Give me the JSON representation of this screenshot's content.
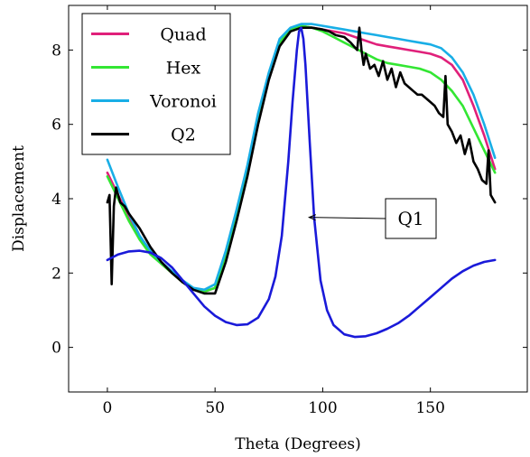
{
  "chart_data": {
    "type": "line",
    "xlabel": "Theta (Degrees)",
    "ylabel": "Displacement",
    "xlim": [
      -18,
      195
    ],
    "ylim": [
      -1.2,
      9.2
    ],
    "xticks": [
      0,
      50,
      100,
      150
    ],
    "yticks": [
      0,
      2,
      4,
      6,
      8
    ],
    "grid": false,
    "legend_position": "top-left",
    "series": [
      {
        "name": "Quad",
        "color": "#e0207a",
        "in_legend": true,
        "x": [
          0,
          5,
          10,
          15,
          20,
          25,
          30,
          35,
          40,
          45,
          50,
          55,
          60,
          65,
          70,
          75,
          80,
          85,
          90,
          95,
          100,
          105,
          110,
          115,
          120,
          125,
          130,
          135,
          140,
          145,
          150,
          155,
          160,
          165,
          170,
          175,
          180
        ],
        "values": [
          4.7,
          4.1,
          3.5,
          2.95,
          2.55,
          2.25,
          2.0,
          1.75,
          1.55,
          1.5,
          1.6,
          2.5,
          3.6,
          4.8,
          6.2,
          7.3,
          8.2,
          8.55,
          8.65,
          8.6,
          8.55,
          8.5,
          8.45,
          8.35,
          8.25,
          8.15,
          8.1,
          8.05,
          8.0,
          7.95,
          7.9,
          7.8,
          7.6,
          7.2,
          6.5,
          5.7,
          4.8
        ]
      },
      {
        "name": "Hex",
        "color": "#33e633",
        "in_legend": true,
        "x": [
          0,
          5,
          10,
          15,
          20,
          25,
          30,
          35,
          40,
          45,
          50,
          55,
          60,
          65,
          70,
          75,
          80,
          85,
          90,
          95,
          100,
          105,
          110,
          115,
          120,
          125,
          130,
          135,
          140,
          145,
          150,
          155,
          160,
          165,
          170,
          175,
          180
        ],
        "values": [
          4.6,
          4.0,
          3.4,
          2.9,
          2.5,
          2.25,
          2.0,
          1.75,
          1.55,
          1.5,
          1.6,
          2.5,
          3.6,
          4.8,
          6.2,
          7.3,
          8.2,
          8.55,
          8.65,
          8.6,
          8.5,
          8.35,
          8.2,
          8.05,
          7.9,
          7.75,
          7.65,
          7.6,
          7.55,
          7.5,
          7.4,
          7.2,
          6.9,
          6.5,
          5.9,
          5.3,
          4.7
        ]
      },
      {
        "name": "Voronoi",
        "color": "#19aee6",
        "in_legend": true,
        "x": [
          0,
          5,
          10,
          15,
          20,
          25,
          30,
          35,
          40,
          45,
          50,
          55,
          60,
          65,
          70,
          75,
          80,
          85,
          90,
          95,
          100,
          105,
          110,
          115,
          120,
          125,
          130,
          135,
          140,
          145,
          150,
          155,
          160,
          165,
          170,
          175,
          180
        ],
        "values": [
          5.05,
          4.3,
          3.6,
          3.0,
          2.6,
          2.3,
          2.05,
          1.8,
          1.6,
          1.55,
          1.7,
          2.6,
          3.7,
          4.9,
          6.3,
          7.4,
          8.3,
          8.6,
          8.7,
          8.7,
          8.65,
          8.6,
          8.55,
          8.5,
          8.45,
          8.4,
          8.35,
          8.3,
          8.25,
          8.2,
          8.15,
          8.05,
          7.8,
          7.4,
          6.8,
          6.0,
          5.1
        ]
      },
      {
        "name": "Q2",
        "color": "#000000",
        "in_legend": true,
        "x": [
          0,
          1,
          2,
          3,
          4,
          6,
          8,
          10,
          15,
          20,
          25,
          30,
          35,
          40,
          45,
          50,
          55,
          60,
          65,
          70,
          75,
          80,
          85,
          90,
          95,
          100,
          103,
          106,
          110,
          113,
          116,
          117,
          118,
          119,
          120,
          122,
          124,
          126,
          128,
          130,
          132,
          134,
          136,
          138,
          140,
          142,
          144,
          146,
          148,
          150,
          152,
          154,
          156,
          157,
          158,
          160,
          162,
          164,
          166,
          168,
          170,
          172,
          174,
          176,
          177,
          178,
          180
        ],
        "values": [
          3.9,
          4.1,
          1.7,
          3.8,
          4.3,
          3.9,
          3.8,
          3.6,
          3.2,
          2.7,
          2.3,
          2.0,
          1.75,
          1.55,
          1.45,
          1.45,
          2.3,
          3.4,
          4.6,
          6.0,
          7.2,
          8.1,
          8.5,
          8.6,
          8.6,
          8.55,
          8.5,
          8.4,
          8.35,
          8.2,
          8.0,
          8.6,
          8.0,
          7.6,
          7.9,
          7.5,
          7.6,
          7.3,
          7.7,
          7.2,
          7.5,
          7.0,
          7.4,
          7.1,
          7.0,
          6.9,
          6.8,
          6.8,
          6.7,
          6.6,
          6.5,
          6.3,
          6.2,
          7.3,
          6.0,
          5.8,
          5.5,
          5.7,
          5.2,
          5.6,
          5.0,
          4.8,
          4.5,
          4.4,
          5.3,
          4.1,
          3.9
        ]
      },
      {
        "name": "Q1",
        "color": "#1a1ad9",
        "in_legend": false,
        "x": [
          0,
          5,
          10,
          15,
          20,
          25,
          30,
          35,
          40,
          45,
          50,
          55,
          60,
          65,
          70,
          75,
          78,
          81,
          84,
          86,
          88,
          89,
          90,
          91,
          92,
          94,
          96,
          99,
          102,
          105,
          110,
          115,
          120,
          125,
          130,
          135,
          140,
          145,
          150,
          155,
          160,
          165,
          170,
          175,
          180
        ],
        "values": [
          2.35,
          2.5,
          2.58,
          2.6,
          2.55,
          2.4,
          2.15,
          1.8,
          1.45,
          1.1,
          0.85,
          0.68,
          0.6,
          0.62,
          0.8,
          1.3,
          1.9,
          3.0,
          5.0,
          6.6,
          8.0,
          8.5,
          8.6,
          8.3,
          7.6,
          5.5,
          3.5,
          1.8,
          1.0,
          0.6,
          0.35,
          0.28,
          0.3,
          0.38,
          0.5,
          0.65,
          0.85,
          1.1,
          1.35,
          1.6,
          1.85,
          2.05,
          2.2,
          2.3,
          2.35
        ]
      }
    ],
    "annotations": [
      {
        "text": "Q1",
        "x": 92,
        "y": 3.5
      }
    ]
  }
}
